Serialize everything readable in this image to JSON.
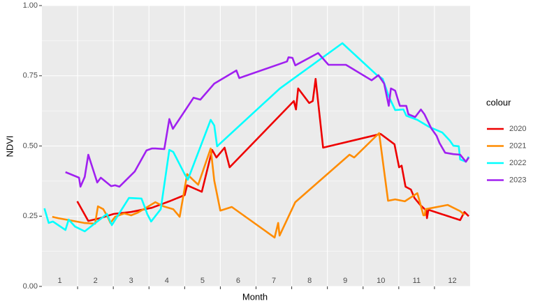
{
  "chart_data": {
    "type": "line",
    "xlabel": "Month",
    "ylabel": "NDVI",
    "legend_title": "colour",
    "legend": "right",
    "xlim": [
      0.5,
      12.5
    ],
    "xticks": [
      1,
      2,
      3,
      4,
      5,
      6,
      7,
      8,
      9,
      10,
      11,
      12
    ],
    "x_boundaries": [
      1.5,
      2.5,
      3.5,
      4.5,
      5.5,
      6.5,
      7.5,
      8.5,
      9.5,
      10.5,
      11.5
    ],
    "ylim": [
      0,
      1
    ],
    "yticks": [
      {
        "value": 0,
        "label": "0.00"
      },
      {
        "value": 0.25,
        "label": "0.25"
      },
      {
        "value": 0.5,
        "label": "0.50"
      },
      {
        "value": 0.75,
        "label": "0.75"
      },
      {
        "value": 1,
        "label": "1.00"
      }
    ],
    "y_minor_ticks": [
      0.125,
      0.375,
      0.625,
      0.875
    ],
    "grid": true,
    "series": [
      {
        "name": "2020",
        "color": "#ee0000",
        "x": [
          1.49,
          1.8,
          2.13,
          2.51,
          3.0,
          3.58,
          4.07,
          4.5,
          4.57,
          4.98,
          5.27,
          5.39,
          5.62,
          5.76,
          7.56,
          7.62,
          7.68,
          7.99,
          8.09,
          8.17,
          8.38,
          9.99,
          10.38,
          10.51,
          10.58,
          10.69,
          10.84,
          10.94,
          11.1,
          11.27,
          11.29,
          11.33,
          12.22,
          12.34,
          12.46
        ],
        "values": [
          0.303,
          0.233,
          0.243,
          0.258,
          0.265,
          0.28,
          0.303,
          0.325,
          0.36,
          0.337,
          0.486,
          0.459,
          0.494,
          0.424,
          0.66,
          0.63,
          0.705,
          0.653,
          0.66,
          0.739,
          0.494,
          0.543,
          0.506,
          0.424,
          0.43,
          0.355,
          0.345,
          0.315,
          0.29,
          0.27,
          0.243,
          0.273,
          0.236,
          0.265,
          0.25
        ]
      },
      {
        "name": "2021",
        "color": "#ff8c00",
        "x": [
          0.79,
          0.96,
          1.68,
          1.99,
          2.07,
          2.22,
          2.36,
          2.42,
          2.55,
          2.81,
          3.0,
          3.19,
          3.39,
          3.68,
          3.91,
          4.18,
          4.36,
          4.57,
          4.73,
          4.88,
          5.23,
          5.33,
          5.5,
          5.82,
          7.02,
          7.12,
          7.16,
          7.6,
          9.12,
          9.25,
          9.95,
          10.2,
          10.4,
          10.67,
          11.02,
          11.08,
          11.19,
          11.23,
          11.25,
          11.87,
          12.22,
          12.34
        ],
        "values": [
          0.248,
          0.243,
          0.226,
          0.223,
          0.285,
          0.275,
          0.243,
          0.226,
          0.248,
          0.26,
          0.253,
          0.263,
          0.278,
          0.3,
          0.285,
          0.275,
          0.248,
          0.4,
          0.38,
          0.362,
          0.491,
          0.377,
          0.27,
          0.283,
          0.174,
          0.226,
          0.181,
          0.3,
          0.469,
          0.459,
          0.546,
          0.305,
          0.31,
          0.303,
          0.332,
          0.305,
          0.253,
          0.253,
          0.275,
          0.29,
          0.268,
          0.255
        ]
      },
      {
        "name": "2022",
        "color": "#00ffff",
        "x": [
          0.57,
          0.69,
          0.81,
          1.16,
          1.25,
          1.43,
          1.7,
          2.22,
          2.32,
          2.46,
          2.94,
          3.29,
          3.39,
          3.45,
          3.56,
          3.83,
          4.07,
          4.18,
          4.5,
          4.59,
          5.23,
          5.33,
          5.41,
          7.17,
          8.92,
          9.89,
          10.05,
          10.15,
          10.22,
          10.4,
          10.63,
          10.71,
          11.02,
          11.35,
          11.72,
          11.93,
          12.03,
          12.18,
          12.22,
          12.38,
          12.46
        ],
        "values": [
          0.278,
          0.226,
          0.231,
          0.201,
          0.238,
          0.213,
          0.196,
          0.248,
          0.258,
          0.218,
          0.315,
          0.313,
          0.28,
          0.258,
          0.231,
          0.275,
          0.486,
          0.479,
          0.4,
          0.38,
          0.593,
          0.573,
          0.499,
          0.705,
          0.866,
          0.752,
          0.739,
          0.702,
          0.677,
          0.628,
          0.63,
          0.608,
          0.593,
          0.568,
          0.548,
          0.519,
          0.501,
          0.499,
          0.452,
          0.444,
          0.462
        ]
      },
      {
        "name": "2023",
        "color": "#a020f0",
        "x": [
          1.16,
          1.54,
          1.58,
          1.7,
          1.8,
          2.05,
          2.15,
          2.44,
          2.55,
          2.67,
          3.1,
          3.43,
          3.58,
          3.68,
          3.93,
          4.07,
          4.17,
          4.75,
          4.94,
          5.33,
          5.95,
          6.03,
          7.37,
          7.41,
          7.52,
          7.6,
          8.24,
          8.53,
          9.02,
          9.74,
          9.93,
          10.09,
          10.22,
          10.28,
          10.4,
          10.53,
          10.71,
          10.77,
          10.96,
          11.12,
          11.22,
          11.41,
          11.56,
          11.64,
          11.8,
          12.03,
          12.22,
          12.38,
          12.46
        ],
        "values": [
          0.407,
          0.387,
          0.355,
          0.39,
          0.469,
          0.37,
          0.387,
          0.357,
          0.36,
          0.355,
          0.409,
          0.484,
          0.491,
          0.491,
          0.489,
          0.596,
          0.561,
          0.672,
          0.665,
          0.722,
          0.769,
          0.742,
          0.801,
          0.816,
          0.814,
          0.787,
          0.831,
          0.789,
          0.789,
          0.734,
          0.752,
          0.722,
          0.643,
          0.705,
          0.697,
          0.643,
          0.643,
          0.613,
          0.603,
          0.63,
          0.613,
          0.563,
          0.536,
          0.511,
          0.476,
          0.471,
          0.469,
          0.444,
          0.459
        ]
      }
    ]
  }
}
